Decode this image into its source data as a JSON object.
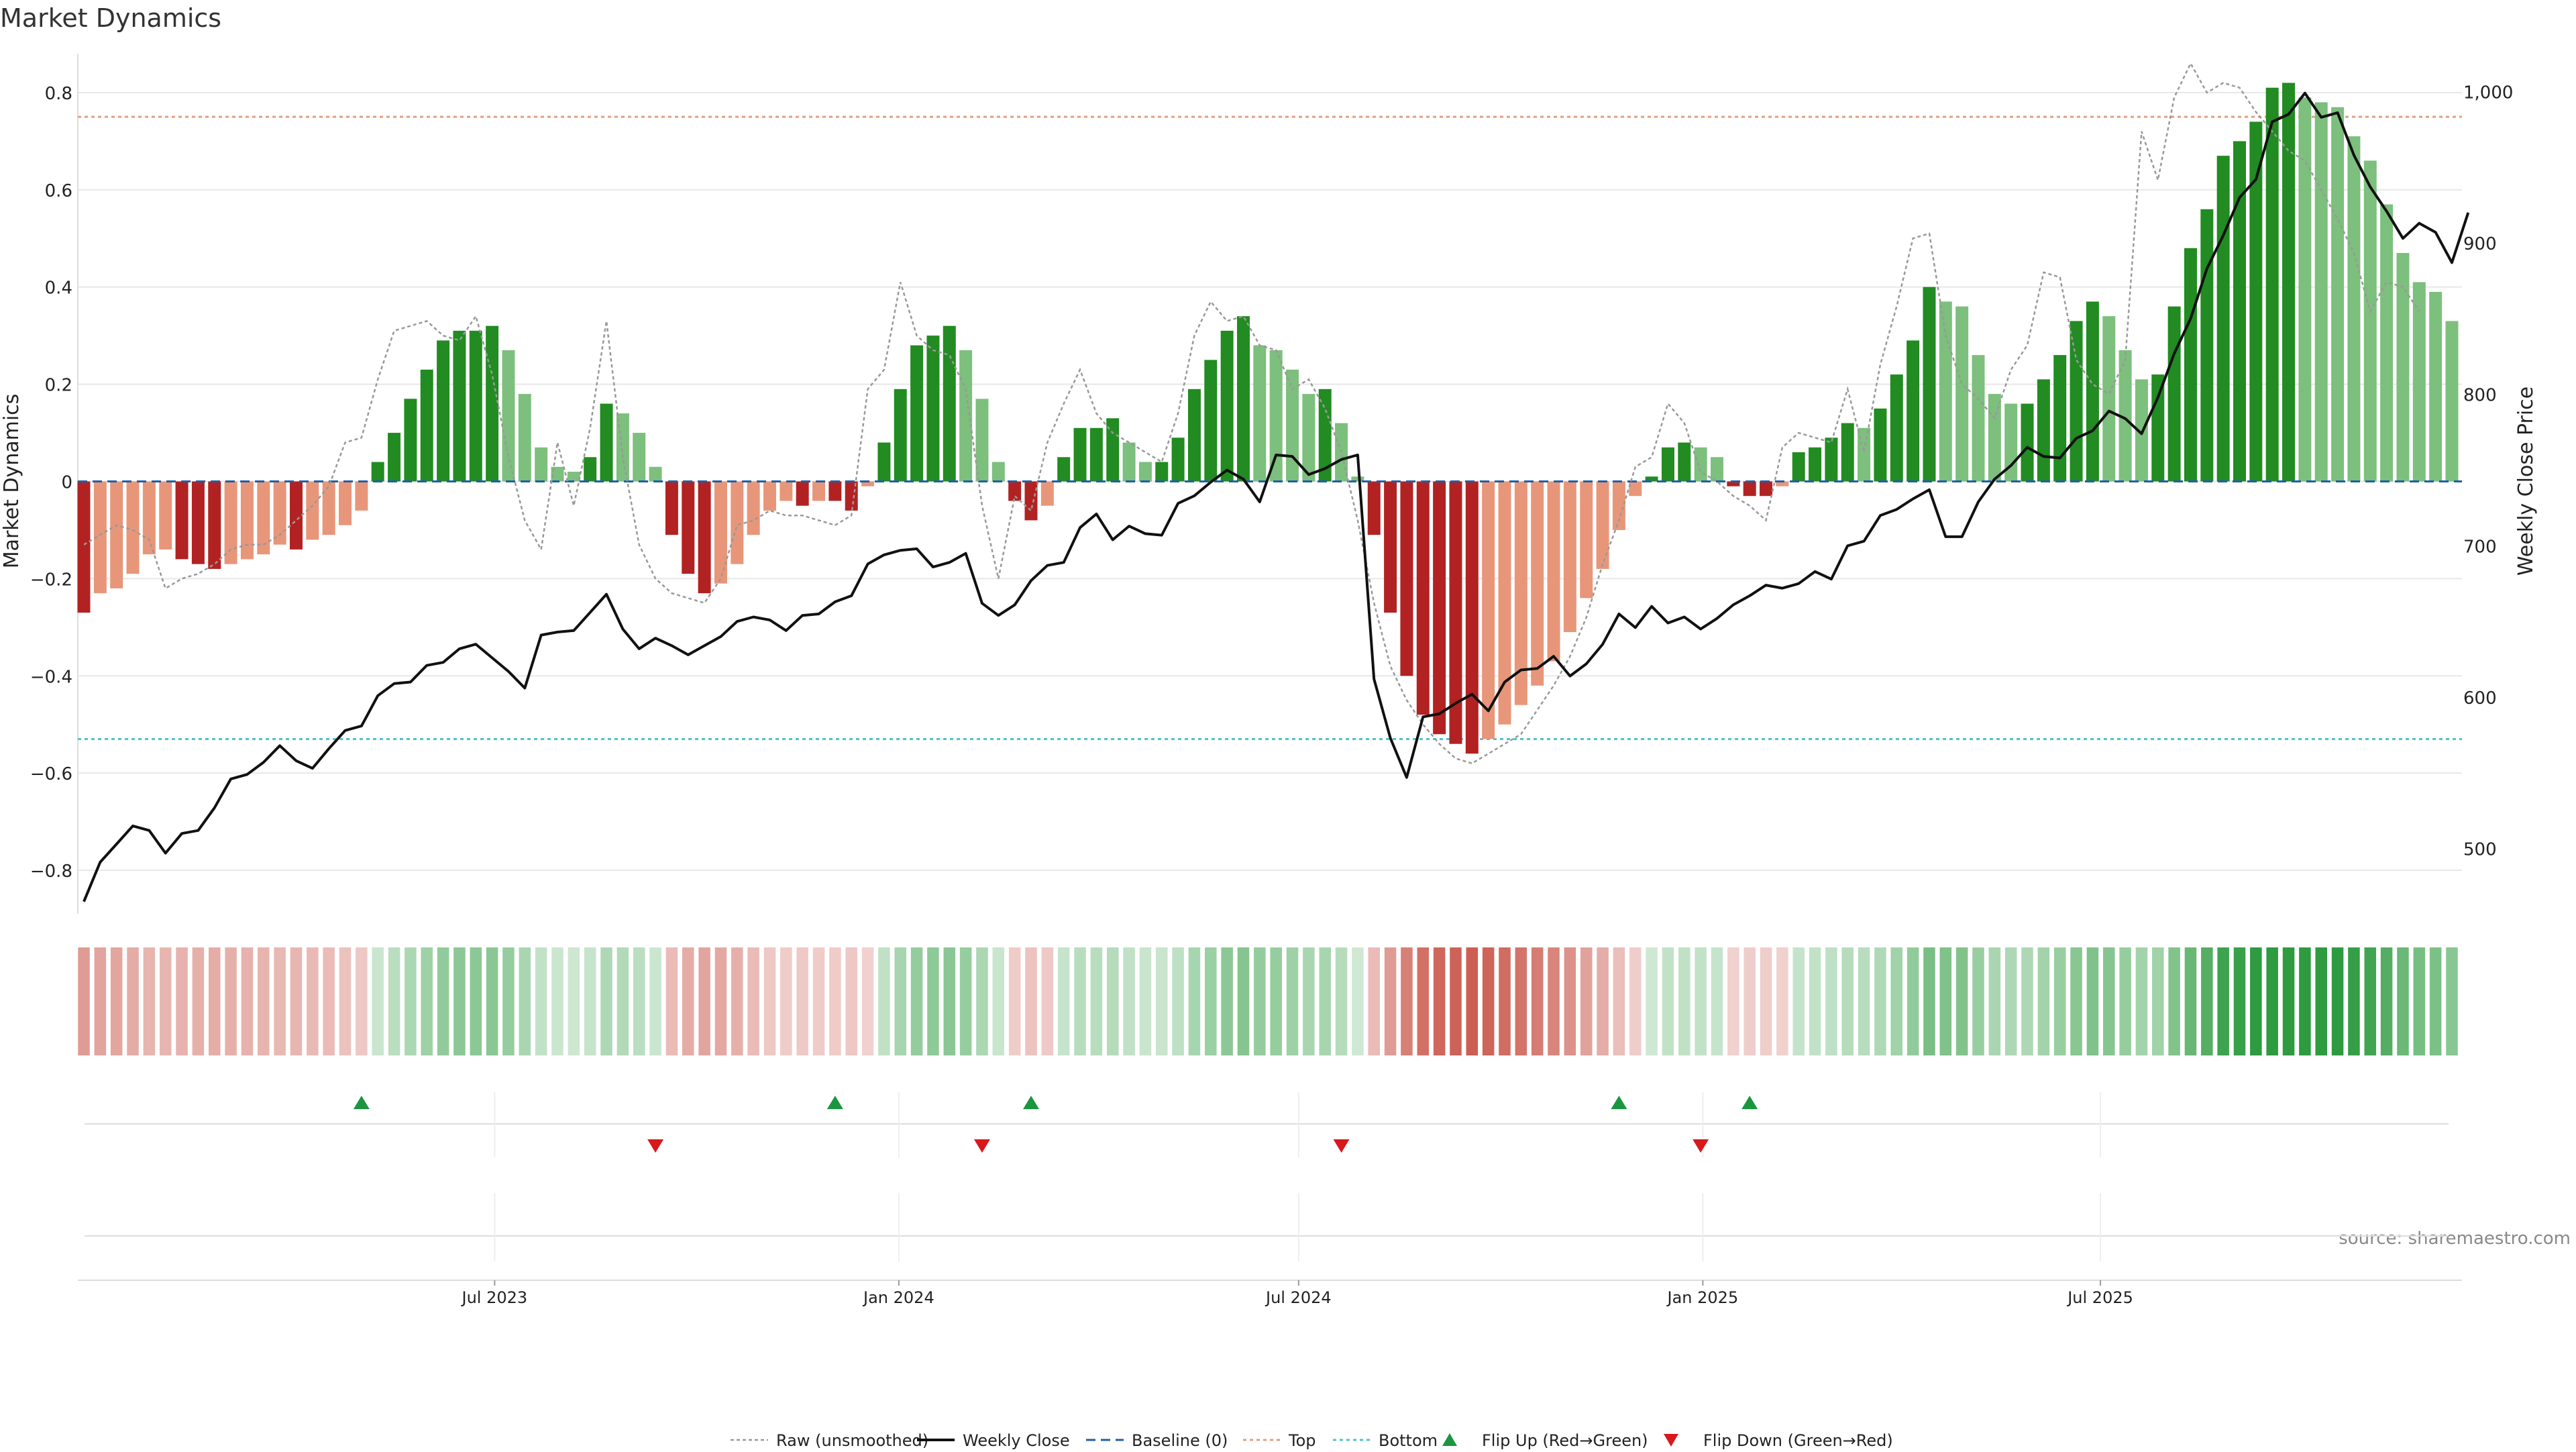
{
  "title": "Market Dynamics",
  "source": "source: sharemaestro.com",
  "colors": {
    "strong_green": "#228b22",
    "light_green": "#7dbf7d",
    "strong_red": "#b22222",
    "light_red": "#e8967a",
    "price_line": "#111111",
    "raw_line": "#999999",
    "baseline": "#1f5fa8",
    "top_line": "#e0a080",
    "bottom_line": "#4fc3d0",
    "flip_up": "#1a9641",
    "flip_down": "#d7191c"
  },
  "legend": [
    {
      "label": "Raw (unsmoothed)",
      "style": "raw"
    },
    {
      "label": "Weekly Close",
      "style": "close"
    },
    {
      "label": "Baseline (0)",
      "style": "baseline"
    },
    {
      "label": "Top",
      "style": "top"
    },
    {
      "label": "Bottom",
      "style": "bottom"
    },
    {
      "label": "Flip Up (Red→Green)",
      "style": "up"
    },
    {
      "label": "Flip Down (Green→Red)",
      "style": "down"
    }
  ],
  "chart_data": {
    "type": "bar",
    "title": "Market Dynamics",
    "ylabel": "Market Dynamics",
    "y2label": "Weekly Close Price",
    "ylim": [
      -0.88,
      0.88
    ],
    "y2lim": [
      460,
      1025
    ],
    "y_ticks": [
      -0.8,
      -0.6,
      -0.4,
      -0.2,
      0,
      0.2,
      0.4,
      0.6,
      0.8
    ],
    "y_tick_labels": [
      "−0.8",
      "−0.6",
      "−0.4",
      "−0.2",
      "0",
      "0.2",
      "0.4",
      "0.6",
      "0.8"
    ],
    "y2_ticks": [
      500,
      600,
      700,
      800,
      900,
      1000
    ],
    "y2_tick_labels": [
      "500",
      "600",
      "700",
      "800",
      "900",
      "1,000"
    ],
    "x_start": "2022-12-26",
    "x_end": "2025-12-08",
    "x_ticks": [
      {
        "date": "2023-07-01",
        "label": "Jul 2023"
      },
      {
        "date": "2024-01-01",
        "label": "Jan 2024"
      },
      {
        "date": "2024-07-01",
        "label": "Jul 2024"
      },
      {
        "date": "2025-01-01",
        "label": "Jan 2025"
      },
      {
        "date": "2025-07-01",
        "label": "Jul 2025"
      }
    ],
    "top_threshold": 0.75,
    "bottom_threshold": -0.53,
    "baseline": 0,
    "grid": true,
    "legend_position": "bottom",
    "series": [
      {
        "name": "Market Dynamics",
        "values": [
          -0.27,
          -0.23,
          -0.22,
          -0.19,
          -0.15,
          -0.14,
          -0.16,
          -0.17,
          -0.18,
          -0.17,
          -0.16,
          -0.15,
          -0.13,
          -0.14,
          -0.12,
          -0.11,
          -0.09,
          -0.06,
          0.04,
          0.1,
          0.17,
          0.23,
          0.29,
          0.31,
          0.31,
          0.32,
          0.27,
          0.18,
          0.07,
          0.03,
          0.02,
          0.05,
          0.16,
          0.14,
          0.1,
          0.03,
          -0.11,
          -0.19,
          -0.23,
          -0.21,
          -0.17,
          -0.11,
          -0.06,
          -0.04,
          -0.05,
          -0.04,
          -0.04,
          -0.06,
          -0.01,
          0.08,
          0.19,
          0.28,
          0.3,
          0.32,
          0.27,
          0.17,
          0.04,
          -0.04,
          -0.08,
          -0.05,
          0.05,
          0.11,
          0.11,
          0.13,
          0.08,
          0.04,
          0.04,
          0.09,
          0.19,
          0.25,
          0.31,
          0.34,
          0.28,
          0.27,
          0.23,
          0.18,
          0.19,
          0.12,
          0.01,
          -0.11,
          -0.27,
          -0.4,
          -0.48,
          -0.52,
          -0.54,
          -0.56,
          -0.53,
          -0.5,
          -0.46,
          -0.42,
          -0.37,
          -0.31,
          -0.24,
          -0.18,
          -0.1,
          -0.03,
          0.01,
          0.07,
          0.08,
          0.07,
          0.05,
          -0.01,
          -0.03,
          -0.03,
          -0.01,
          0.06,
          0.07,
          0.09,
          0.12,
          0.11,
          0.15,
          0.22,
          0.29,
          0.4,
          0.37,
          0.36,
          0.26,
          0.18,
          0.16,
          0.16,
          0.21,
          0.26,
          0.33,
          0.37,
          0.34,
          0.27,
          0.21,
          0.22,
          0.36,
          0.48,
          0.56,
          0.67,
          0.7,
          0.74,
          0.81,
          0.82,
          0.79,
          0.78,
          0.77,
          0.71,
          0.66,
          0.57,
          0.47,
          0.41,
          0.39,
          0.33
        ]
      },
      {
        "name": "Raw (unsmoothed)",
        "values": [
          -0.13,
          -0.11,
          -0.09,
          -0.1,
          -0.12,
          -0.22,
          -0.2,
          -0.19,
          -0.17,
          -0.14,
          -0.13,
          -0.13,
          -0.11,
          -0.08,
          -0.05,
          -0.01,
          0.08,
          0.09,
          0.21,
          0.31,
          0.32,
          0.33,
          0.3,
          0.29,
          0.34,
          0.22,
          0.05,
          -0.08,
          -0.14,
          0.08,
          -0.05,
          0.11,
          0.33,
          0.05,
          -0.13,
          -0.2,
          -0.23,
          -0.24,
          -0.25,
          -0.2,
          -0.09,
          -0.08,
          -0.06,
          -0.07,
          -0.07,
          -0.08,
          -0.09,
          -0.07,
          0.19,
          0.23,
          0.41,
          0.3,
          0.27,
          0.26,
          0.19,
          -0.05,
          -0.2,
          -0.03,
          -0.06,
          0.08,
          0.16,
          0.23,
          0.14,
          0.1,
          0.08,
          0.06,
          0.04,
          0.14,
          0.3,
          0.37,
          0.33,
          0.34,
          0.28,
          0.27,
          0.19,
          0.21,
          0.15,
          0.06,
          -0.08,
          -0.25,
          -0.38,
          -0.45,
          -0.5,
          -0.54,
          -0.57,
          -0.58,
          -0.56,
          -0.54,
          -0.52,
          -0.47,
          -0.42,
          -0.36,
          -0.28,
          -0.17,
          -0.08,
          0.03,
          0.05,
          0.16,
          0.12,
          0.02,
          0.0,
          -0.03,
          -0.05,
          -0.08,
          0.07,
          0.1,
          0.09,
          0.08,
          0.19,
          0.06,
          0.24,
          0.36,
          0.5,
          0.51,
          0.3,
          0.2,
          0.17,
          0.13,
          0.23,
          0.28,
          0.43,
          0.42,
          0.25,
          0.2,
          0.18,
          0.25,
          0.72,
          0.62,
          0.79,
          0.86,
          0.8,
          0.82,
          0.81,
          0.76,
          0.72,
          0.68,
          0.66,
          0.6,
          0.54,
          0.47,
          0.35,
          0.41,
          0.4,
          0.35
        ]
      },
      {
        "name": "Weekly Close",
        "values": [
          465,
          491,
          503,
          515,
          512,
          497,
          510,
          512,
          527,
          546,
          549,
          557,
          568,
          558,
          553,
          566,
          578,
          581,
          601,
          609,
          610,
          621,
          623,
          632,
          635,
          626,
          617,
          606,
          641,
          643,
          644,
          656,
          668,
          645,
          632,
          639,
          634,
          628,
          634,
          640,
          650,
          653,
          651,
          644,
          654,
          655,
          663,
          667,
          688,
          694,
          697,
          698,
          686,
          689,
          695,
          662,
          654,
          661,
          677,
          687,
          689,
          712,
          721,
          704,
          713,
          708,
          707,
          728,
          733,
          742,
          750,
          744,
          729,
          760,
          759,
          747,
          751,
          757,
          760,
          612,
          573,
          547,
          587,
          589,
          596,
          602,
          591,
          610,
          618,
          619,
          627,
          614,
          622,
          635,
          655,
          646,
          660,
          649,
          653,
          645,
          652,
          661,
          667,
          674,
          672,
          675,
          683,
          678,
          700,
          703,
          720,
          724,
          731,
          737,
          706,
          706,
          729,
          744,
          753,
          765,
          759,
          758,
          771,
          776,
          789,
          784,
          774,
          798,
          827,
          850,
          883,
          905,
          930,
          942,
          980,
          985,
          999,
          983,
          986,
          958,
          937,
          921,
          903,
          913,
          907,
          887,
          920
        ]
      }
    ],
    "regime_strip_values": [
      -0.27,
      -0.23,
      -0.22,
      -0.19,
      -0.15,
      -0.14,
      -0.16,
      -0.17,
      -0.18,
      -0.17,
      -0.16,
      -0.15,
      -0.13,
      -0.14,
      -0.12,
      -0.11,
      -0.09,
      -0.06,
      0.04,
      0.1,
      0.17,
      0.23,
      0.29,
      0.31,
      0.31,
      0.32,
      0.27,
      0.18,
      0.07,
      0.03,
      0.02,
      0.05,
      0.16,
      0.14,
      0.1,
      0.03,
      -0.11,
      -0.19,
      -0.23,
      -0.21,
      -0.17,
      -0.11,
      -0.06,
      -0.04,
      -0.05,
      -0.04,
      -0.04,
      -0.06,
      -0.01,
      0.08,
      0.19,
      0.28,
      0.3,
      0.32,
      0.27,
      0.17,
      0.04,
      -0.04,
      -0.08,
      -0.05,
      0.05,
      0.11,
      0.11,
      0.13,
      0.08,
      0.04,
      0.04,
      0.09,
      0.19,
      0.25,
      0.31,
      0.34,
      0.28,
      0.27,
      0.23,
      0.18,
      0.19,
      0.12,
      0.01,
      -0.11,
      -0.27,
      -0.4,
      -0.48,
      -0.52,
      -0.54,
      -0.56,
      -0.53,
      -0.5,
      -0.46,
      -0.42,
      -0.37,
      -0.31,
      -0.24,
      -0.18,
      -0.1,
      -0.03,
      0.01,
      0.07,
      0.08,
      0.07,
      0.05,
      -0.01,
      -0.03,
      -0.03,
      -0.01,
      0.06,
      0.07,
      0.09,
      0.12,
      0.11,
      0.15,
      0.22,
      0.29,
      0.4,
      0.37,
      0.36,
      0.26,
      0.18,
      0.16,
      0.16,
      0.21,
      0.26,
      0.33,
      0.37,
      0.34,
      0.27,
      0.21,
      0.22,
      0.36,
      0.48,
      0.56,
      0.67,
      0.7,
      0.74,
      0.81,
      0.82,
      0.79,
      0.78,
      0.77,
      0.71,
      0.66,
      0.57,
      0.47,
      0.41,
      0.39,
      0.33
    ],
    "flip_up_weeks": [
      17,
      46,
      58,
      94,
      102
    ],
    "flip_down_weeks": [
      35,
      55,
      77,
      99
    ]
  }
}
